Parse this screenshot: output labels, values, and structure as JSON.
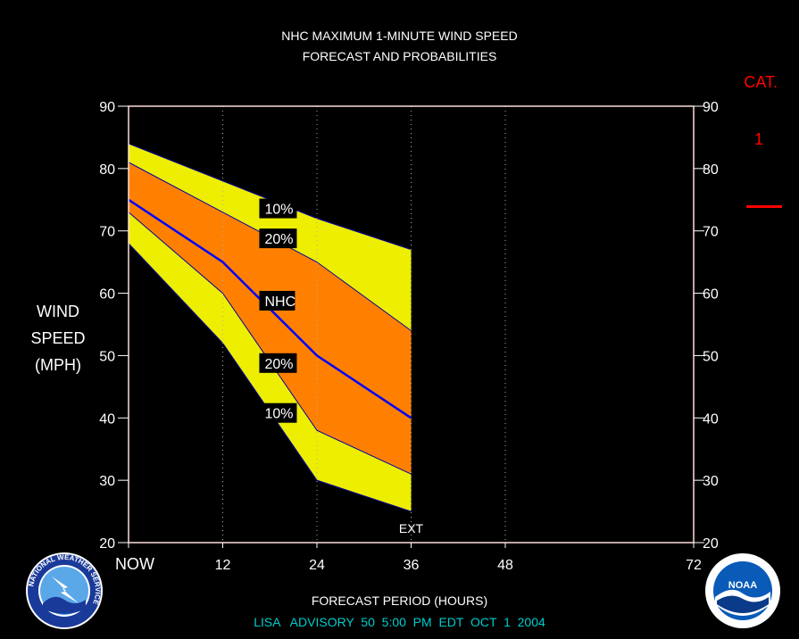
{
  "title_line1": "NHC MAXIMUM 1-MINUTE WIND SPEED",
  "title_line2": "FORECAST AND PROBABILITIES",
  "ylabel_lines": [
    "WIND",
    "SPEED",
    "(MPH)"
  ],
  "xlabel": "FORECAST PERIOD (HOURS)",
  "advisory": "LISA   ADVISORY  50  5:00  PM  EDT  OCT  1  2004",
  "category_label": "CAT.",
  "category_value": "1",
  "category_threshold_mph": 74,
  "logos": {
    "nws": {
      "text": "NATIONAL WEATHER SERVICE"
    },
    "noaa": {
      "center_text": "NOAA"
    }
  },
  "colors": {
    "outer_band": "#eeee00",
    "inner_band": "#ff8000",
    "nhc_line": "#0000ff",
    "category": "#ff0000",
    "advisory_text": "#00cccc",
    "frame": "#ffdddd"
  },
  "chart_data": {
    "type": "area",
    "title": "NHC MAXIMUM 1-MINUTE WIND SPEED FORECAST AND PROBABILITIES",
    "xlabel": "FORECAST PERIOD (HOURS)",
    "ylabel": "WIND SPEED (MPH)",
    "xlim": [
      0,
      72
    ],
    "ylim": [
      20,
      90
    ],
    "x_ticks": [
      {
        "value": 0,
        "label": "NOW"
      },
      {
        "value": 12,
        "label": "12"
      },
      {
        "value": 24,
        "label": "24"
      },
      {
        "value": 36,
        "label": "36"
      },
      {
        "value": 48,
        "label": "48"
      },
      {
        "value": 72,
        "label": "72"
      }
    ],
    "y_ticks": [
      20,
      30,
      40,
      50,
      60,
      70,
      80,
      90
    ],
    "x": [
      0,
      12,
      24,
      36
    ],
    "series": [
      {
        "name": "10%",
        "kind": "upper",
        "values": [
          84,
          78,
          72,
          67
        ]
      },
      {
        "name": "20%",
        "kind": "upper",
        "values": [
          81,
          73,
          65,
          54
        ]
      },
      {
        "name": "NHC",
        "kind": "line",
        "values": [
          75,
          65,
          50,
          40
        ]
      },
      {
        "name": "20%",
        "kind": "lower",
        "values": [
          73,
          60,
          38,
          31
        ]
      },
      {
        "name": "10%",
        "kind": "lower",
        "values": [
          68,
          52,
          30,
          25
        ]
      }
    ],
    "band_labels": [
      {
        "text": "10%",
        "x": 17,
        "y": 73.6
      },
      {
        "text": "20%",
        "x": 17,
        "y": 68.8
      },
      {
        "text": "NHC",
        "x": 17,
        "y": 58.8
      },
      {
        "text": "20%",
        "x": 17,
        "y": 48.8
      },
      {
        "text": "10%",
        "x": 17,
        "y": 40.8
      }
    ],
    "annotations": [
      {
        "text": "EXT",
        "x": 36,
        "y": 21.6
      }
    ],
    "grid": "dotted vertical at 12, 24, 36, 48",
    "legend": "none"
  }
}
